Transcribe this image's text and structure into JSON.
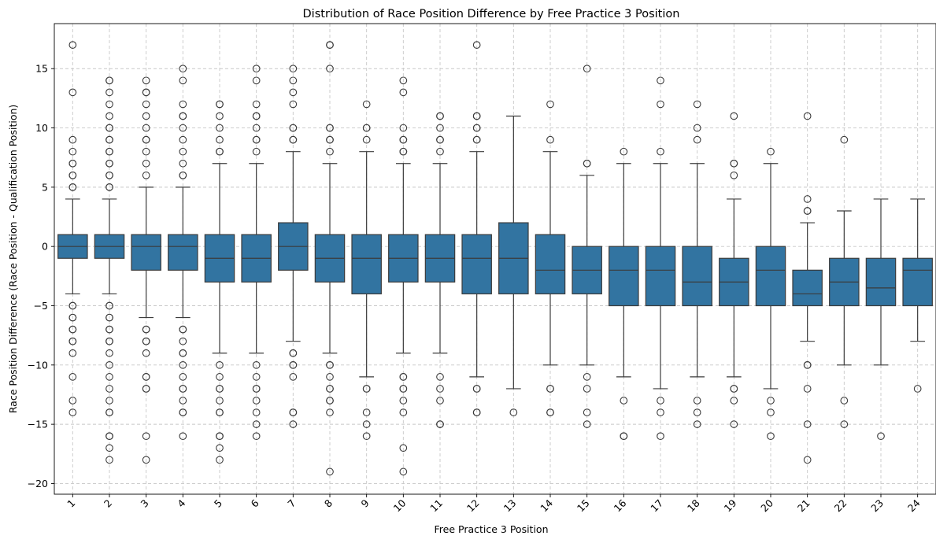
{
  "chart_data": {
    "type": "box",
    "title": "Distribution of Race Position Difference by Free Practice 3 Position",
    "xlabel": "Free Practice 3 Position",
    "ylabel": "Race Position Difference (Race Position - Qualification Position)",
    "ylim": [
      -20.9,
      18.8
    ],
    "yticks": [
      -20,
      -15,
      -10,
      -5,
      0,
      5,
      10,
      15
    ],
    "ytick_labels": [
      "−20",
      "−15",
      "−10",
      "−5",
      "0",
      "5",
      "10",
      "15"
    ],
    "grid": true,
    "box_color": "#3274a1",
    "categories": [
      "1",
      "2",
      "3",
      "4",
      "5",
      "6",
      "7",
      "8",
      "9",
      "10",
      "11",
      "12",
      "13",
      "14",
      "15",
      "16",
      "17",
      "18",
      "19",
      "20",
      "21",
      "22",
      "23",
      "24"
    ],
    "boxes": [
      {
        "q1": -1,
        "median": 0,
        "q3": 1,
        "whislo": -4,
        "whishi": 4,
        "fliers": [
          17,
          13,
          9,
          8,
          7,
          7,
          6,
          6,
          5,
          5,
          -5,
          -5,
          -6,
          -6,
          -7,
          -7,
          -8,
          -8,
          -9,
          -11,
          -13,
          -14
        ]
      },
      {
        "q1": -1,
        "median": 0,
        "q3": 1,
        "whislo": -4,
        "whishi": 4,
        "fliers": [
          14,
          14,
          13,
          12,
          11,
          10,
          10,
          9,
          9,
          8,
          8,
          7,
          7,
          6,
          6,
          5,
          5,
          -5,
          -5,
          -6,
          -6,
          -7,
          -7,
          -8,
          -8,
          -9,
          -10,
          -11,
          -12,
          -13,
          -14,
          -14,
          -16,
          -16,
          -17,
          -18
        ]
      },
      {
        "q1": -2,
        "median": 0,
        "q3": 1,
        "whislo": -6,
        "whishi": 5,
        "fliers": [
          14,
          13,
          13,
          12,
          11,
          10,
          9,
          9,
          8,
          7,
          6,
          -7,
          -7,
          -8,
          -8,
          -9,
          -11,
          -11,
          -12,
          -12,
          -16,
          -18
        ]
      },
      {
        "q1": -2,
        "median": 0,
        "q3": 1,
        "whislo": -6,
        "whishi": 5,
        "fliers": [
          15,
          14,
          12,
          11,
          11,
          10,
          9,
          8,
          7,
          6,
          6,
          -7,
          -7,
          -8,
          -9,
          -9,
          -10,
          -11,
          -12,
          -12,
          -13,
          -14,
          -14,
          -16
        ]
      },
      {
        "q1": -3,
        "median": -1,
        "q3": 1,
        "whislo": -9,
        "whishi": 7,
        "fliers": [
          12,
          12,
          11,
          10,
          9,
          8,
          8,
          -10,
          -11,
          -12,
          -12,
          -13,
          -14,
          -14,
          -16,
          -16,
          -17,
          -18
        ]
      },
      {
        "q1": -3,
        "median": -1,
        "q3": 1,
        "whislo": -9,
        "whishi": 7,
        "fliers": [
          15,
          14,
          12,
          11,
          11,
          10,
          9,
          9,
          8,
          -10,
          -11,
          -12,
          -12,
          -13,
          -14,
          -15,
          -16
        ]
      },
      {
        "q1": -2,
        "median": 0,
        "q3": 2,
        "whislo": -8,
        "whishi": 8,
        "fliers": [
          15,
          14,
          13,
          12,
          10,
          10,
          9,
          9,
          -9,
          -9,
          -10,
          -10,
          -11,
          -14,
          -14,
          -15
        ]
      },
      {
        "q1": -3,
        "median": -1,
        "q3": 1,
        "whislo": -9,
        "whishi": 7,
        "fliers": [
          17,
          17,
          15,
          10,
          10,
          9,
          9,
          8,
          -10,
          -10,
          -11,
          -12,
          -12,
          -13,
          -13,
          -14,
          -19
        ]
      },
      {
        "q1": -4,
        "median": -1,
        "q3": 1,
        "whislo": -11,
        "whishi": 8,
        "fliers": [
          12,
          10,
          10,
          9,
          -12,
          -12,
          -14,
          -15,
          -16
        ]
      },
      {
        "q1": -3,
        "median": -1,
        "q3": 1,
        "whislo": -9,
        "whishi": 7,
        "fliers": [
          14,
          13,
          10,
          9,
          9,
          8,
          8,
          -11,
          -11,
          -12,
          -12,
          -13,
          -14,
          -17,
          -19
        ]
      },
      {
        "q1": -3,
        "median": -1,
        "q3": 1,
        "whislo": -9,
        "whishi": 7,
        "fliers": [
          11,
          11,
          10,
          9,
          9,
          8,
          -11,
          -12,
          -13,
          -15,
          -15
        ]
      },
      {
        "q1": -4,
        "median": -1,
        "q3": 1,
        "whislo": -11,
        "whishi": 8,
        "fliers": [
          17,
          11,
          11,
          10,
          10,
          9,
          9,
          -12,
          -12,
          -14,
          -14
        ]
      },
      {
        "q1": -4,
        "median": -1,
        "q3": 2,
        "whislo": -12,
        "whishi": 11,
        "fliers": [
          -14
        ]
      },
      {
        "q1": -4,
        "median": -2,
        "q3": 1,
        "whislo": -10,
        "whishi": 8,
        "fliers": [
          12,
          9,
          -12,
          -12,
          -14,
          -14
        ]
      },
      {
        "q1": -4,
        "median": -2,
        "q3": 0,
        "whislo": -10,
        "whishi": 6,
        "fliers": [
          15,
          7,
          7,
          -11,
          -12,
          -14,
          -15
        ]
      },
      {
        "q1": -5,
        "median": -2,
        "q3": 0,
        "whislo": -11,
        "whishi": 7,
        "fliers": [
          8,
          -13,
          -16,
          -16
        ]
      },
      {
        "q1": -5,
        "median": -2,
        "q3": 0,
        "whislo": -12,
        "whishi": 7,
        "fliers": [
          14,
          12,
          8,
          -13,
          -14,
          -16
        ]
      },
      {
        "q1": -5,
        "median": -3,
        "q3": 0,
        "whislo": -11,
        "whishi": 7,
        "fliers": [
          12,
          10,
          9,
          -13,
          -14,
          -15
        ]
      },
      {
        "q1": -5,
        "median": -3,
        "q3": -1,
        "whislo": -11,
        "whishi": 4,
        "fliers": [
          11,
          7,
          7,
          6,
          -12,
          -12,
          -13,
          -15
        ]
      },
      {
        "q1": -5,
        "median": -2,
        "q3": 0,
        "whislo": -12,
        "whishi": 7,
        "fliers": [
          8,
          -13,
          -14,
          -16
        ]
      },
      {
        "q1": -5,
        "median": -4,
        "q3": -2,
        "whislo": -8,
        "whishi": 2,
        "fliers": [
          11,
          4,
          3,
          3,
          -10,
          -10,
          -12,
          -15,
          -18
        ]
      },
      {
        "q1": -5,
        "median": -3,
        "q3": -1,
        "whislo": -10,
        "whishi": 3,
        "fliers": [
          9,
          -13,
          -15
        ]
      },
      {
        "q1": -5,
        "median": -3.5,
        "q3": -1,
        "whislo": -10,
        "whishi": 4,
        "fliers": [
          -16
        ]
      },
      {
        "q1": -5,
        "median": -2,
        "q3": -1,
        "whislo": -8,
        "whishi": 4,
        "fliers": [
          -12
        ]
      }
    ]
  }
}
